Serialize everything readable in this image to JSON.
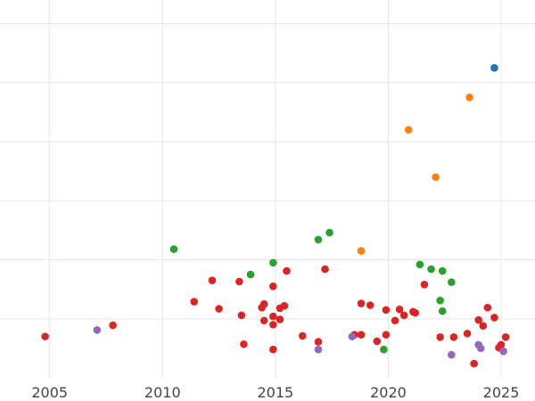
{
  "chart_data": {
    "type": "scatter",
    "title": "",
    "xlabel": "",
    "ylabel": "",
    "xlim": [
      2002.8,
      2026.5
    ],
    "ylim": [
      0,
      64
    ],
    "grid": true,
    "x_ticks": [
      2005,
      2010,
      2015,
      2020,
      2025
    ],
    "y_gridlines": [
      10,
      20,
      30,
      40,
      50,
      60
    ],
    "colors": {
      "blue": "#1f77b4",
      "orange": "#ff7f0e",
      "green": "#2ca02c",
      "red": "#d62728",
      "purple": "#9467bd"
    },
    "series": [
      {
        "color": "#1f77b4",
        "points": [
          [
            2024.7,
            52.5
          ]
        ]
      },
      {
        "color": "#ff7f0e",
        "points": [
          [
            2023.6,
            47.5
          ],
          [
            2020.9,
            42.0
          ],
          [
            2022.1,
            34.0
          ],
          [
            2018.8,
            21.5
          ]
        ]
      },
      {
        "color": "#2ca02c",
        "points": [
          [
            2010.5,
            21.8
          ],
          [
            2013.9,
            17.5
          ],
          [
            2014.9,
            19.5
          ],
          [
            2016.9,
            23.4
          ],
          [
            2017.4,
            24.6
          ],
          [
            2021.4,
            19.2
          ],
          [
            2021.9,
            18.4
          ],
          [
            2022.4,
            18.1
          ],
          [
            2022.8,
            16.2
          ],
          [
            2022.3,
            13.1
          ],
          [
            2022.4,
            11.3
          ],
          [
            2019.8,
            4.8
          ]
        ]
      },
      {
        "color": "#d62728",
        "points": [
          [
            2004.8,
            7.0
          ],
          [
            2007.8,
            8.9
          ],
          [
            2011.4,
            12.9
          ],
          [
            2012.2,
            16.5
          ],
          [
            2012.5,
            11.7
          ],
          [
            2013.4,
            16.3
          ],
          [
            2013.5,
            10.6
          ],
          [
            2013.6,
            5.7
          ],
          [
            2014.4,
            11.9
          ],
          [
            2014.5,
            12.5
          ],
          [
            2014.5,
            9.7
          ],
          [
            2014.9,
            15.5
          ],
          [
            2014.9,
            10.4
          ],
          [
            2014.9,
            9.0
          ],
          [
            2014.9,
            4.8
          ],
          [
            2015.2,
            9.9
          ],
          [
            2015.2,
            11.8
          ],
          [
            2015.4,
            12.2
          ],
          [
            2015.5,
            18.1
          ],
          [
            2016.2,
            7.1
          ],
          [
            2016.9,
            6.1
          ],
          [
            2017.2,
            18.4
          ],
          [
            2018.5,
            7.3
          ],
          [
            2018.8,
            12.6
          ],
          [
            2018.8,
            7.3
          ],
          [
            2019.2,
            12.3
          ],
          [
            2019.5,
            6.2
          ],
          [
            2019.9,
            11.5
          ],
          [
            2019.9,
            7.3
          ],
          [
            2020.3,
            9.7
          ],
          [
            2020.5,
            11.6
          ],
          [
            2020.7,
            10.6
          ],
          [
            2021.1,
            11.2
          ],
          [
            2021.2,
            11.0
          ],
          [
            2021.6,
            15.8
          ],
          [
            2022.3,
            6.9
          ],
          [
            2022.9,
            6.9
          ],
          [
            2023.5,
            7.5
          ],
          [
            2023.8,
            2.4
          ],
          [
            2024.0,
            9.8
          ],
          [
            2024.2,
            8.8
          ],
          [
            2024.4,
            11.9
          ],
          [
            2024.7,
            10.2
          ],
          [
            2024.9,
            5.1
          ],
          [
            2025.0,
            5.6
          ],
          [
            2025.2,
            6.9
          ]
        ]
      },
      {
        "color": "#9467bd",
        "points": [
          [
            2007.1,
            8.1
          ],
          [
            2016.9,
            4.8
          ],
          [
            2018.4,
            7.0
          ],
          [
            2022.8,
            3.9
          ],
          [
            2024.0,
            5.6
          ],
          [
            2024.1,
            5.0
          ],
          [
            2025.1,
            4.5
          ]
        ]
      }
    ]
  }
}
